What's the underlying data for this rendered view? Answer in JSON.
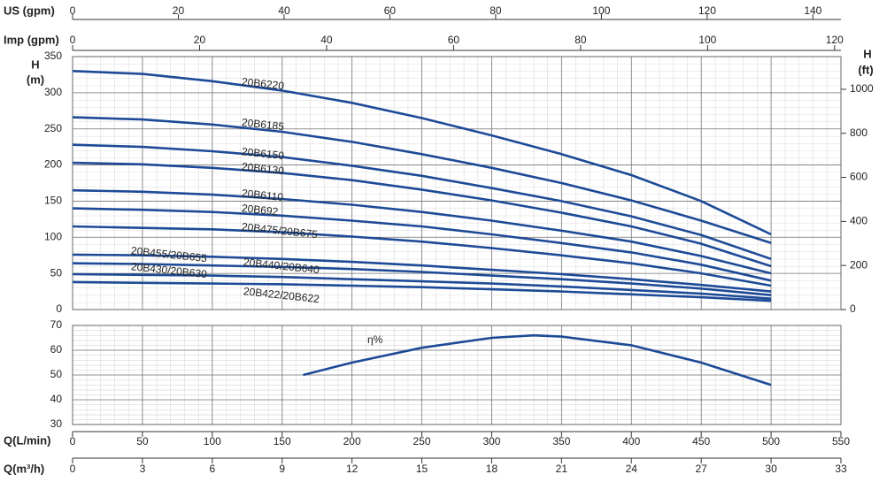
{
  "chart_data": [
    {
      "type": "line",
      "y_label": [
        "H",
        "(m)"
      ],
      "y2_label": [
        "H",
        "(ft)"
      ],
      "x": [
        0,
        50,
        100,
        150,
        200,
        250,
        300,
        350,
        400,
        450,
        500
      ],
      "xlim": [
        0,
        550
      ],
      "xticks": [
        0,
        50,
        100,
        150,
        200,
        250,
        300,
        350,
        400,
        450,
        500,
        550
      ],
      "ylim": [
        0,
        350
      ],
      "yticks": [
        0,
        50,
        100,
        150,
        200,
        250,
        300,
        350
      ],
      "y2lim": [
        0,
        1148.3
      ],
      "y2ticks": [
        0,
        200,
        400,
        600,
        800,
        1000
      ],
      "top_axes": [
        {
          "label": "US (gpm)",
          "xlim": [
            0,
            145.3
          ],
          "xticks": [
            0,
            20,
            40,
            60,
            80,
            100,
            120,
            140
          ]
        },
        {
          "label": "Imp (gpm)",
          "xlim": [
            0,
            121
          ],
          "xticks": [
            0,
            20,
            40,
            60,
            80,
            100,
            120
          ]
        }
      ],
      "grid": true,
      "series": [
        {
          "name": "20B6220",
          "color": "#1d4a97",
          "values": [
            330,
            326,
            316,
            303,
            286,
            265,
            241,
            215,
            186,
            150,
            104
          ]
        },
        {
          "name": "20B6185",
          "color": "#1d4a97",
          "values": [
            266,
            263,
            256,
            246,
            232,
            215,
            196,
            175,
            151,
            123,
            92
          ]
        },
        {
          "name": "20B6150",
          "color": "#1d4a97",
          "values": [
            228,
            225,
            219,
            211,
            199,
            185,
            168,
            150,
            129,
            103,
            70
          ]
        },
        {
          "name": "20B6130",
          "color": "#1d4a97",
          "values": [
            203,
            201,
            196,
            189,
            179,
            166,
            151,
            134,
            115,
            91,
            60
          ]
        },
        {
          "name": "20B6110",
          "color": "#1d4a97",
          "values": [
            165,
            163,
            159,
            153,
            145,
            135,
            123,
            109,
            94,
            74,
            50
          ]
        },
        {
          "name": "20B692",
          "color": "#1d4a97",
          "values": [
            140,
            138,
            135,
            130,
            123,
            115,
            104,
            92,
            79,
            62,
            40
          ]
        },
        {
          "name": "20B475/20B675",
          "color": "#1d4a97",
          "values": [
            115,
            113,
            111,
            107,
            101,
            94,
            85,
            75,
            64,
            50,
            33
          ]
        },
        {
          "name": "20B455/20B655",
          "color": "#1d4a97",
          "values": [
            76,
            75,
            73,
            70,
            66,
            61,
            55,
            49,
            42,
            34,
            25
          ]
        },
        {
          "name": "20B440/20B640",
          "color": "#1d4a97",
          "values": [
            64,
            63,
            61,
            59,
            56,
            52,
            47,
            42,
            36,
            29,
            20
          ]
        },
        {
          "name": "20B430/20B630",
          "color": "#1d4a97",
          "values": [
            49,
            48,
            47,
            45,
            42,
            39,
            36,
            32,
            27,
            22,
            15
          ]
        },
        {
          "name": "20B422/20B622",
          "color": "#1d4a97",
          "values": [
            38,
            37,
            36,
            35,
            33,
            31,
            28,
            25,
            21,
            17,
            12
          ]
        }
      ]
    },
    {
      "type": "line",
      "x_label": "Q(L/min)",
      "x": [
        165,
        200,
        250,
        300,
        330,
        350,
        400,
        450,
        500
      ],
      "xlim": [
        0,
        550
      ],
      "xticks": [
        0,
        50,
        100,
        150,
        200,
        250,
        300,
        350,
        400,
        450,
        500,
        550
      ],
      "ylim": [
        30,
        70
      ],
      "yticks": [
        30,
        40,
        50,
        60,
        70
      ],
      "bottom_axis": {
        "label": "Q(m³/h)",
        "xlim": [
          0,
          33
        ],
        "xticks": [
          0,
          3,
          6,
          9,
          12,
          15,
          18,
          21,
          24,
          27,
          30,
          33
        ]
      },
      "grid": true,
      "series": [
        {
          "name": "η%",
          "color": "#1d4a97",
          "values": [
            50,
            55,
            61,
            65,
            66,
            65.5,
            62,
            55,
            46
          ]
        }
      ]
    }
  ]
}
